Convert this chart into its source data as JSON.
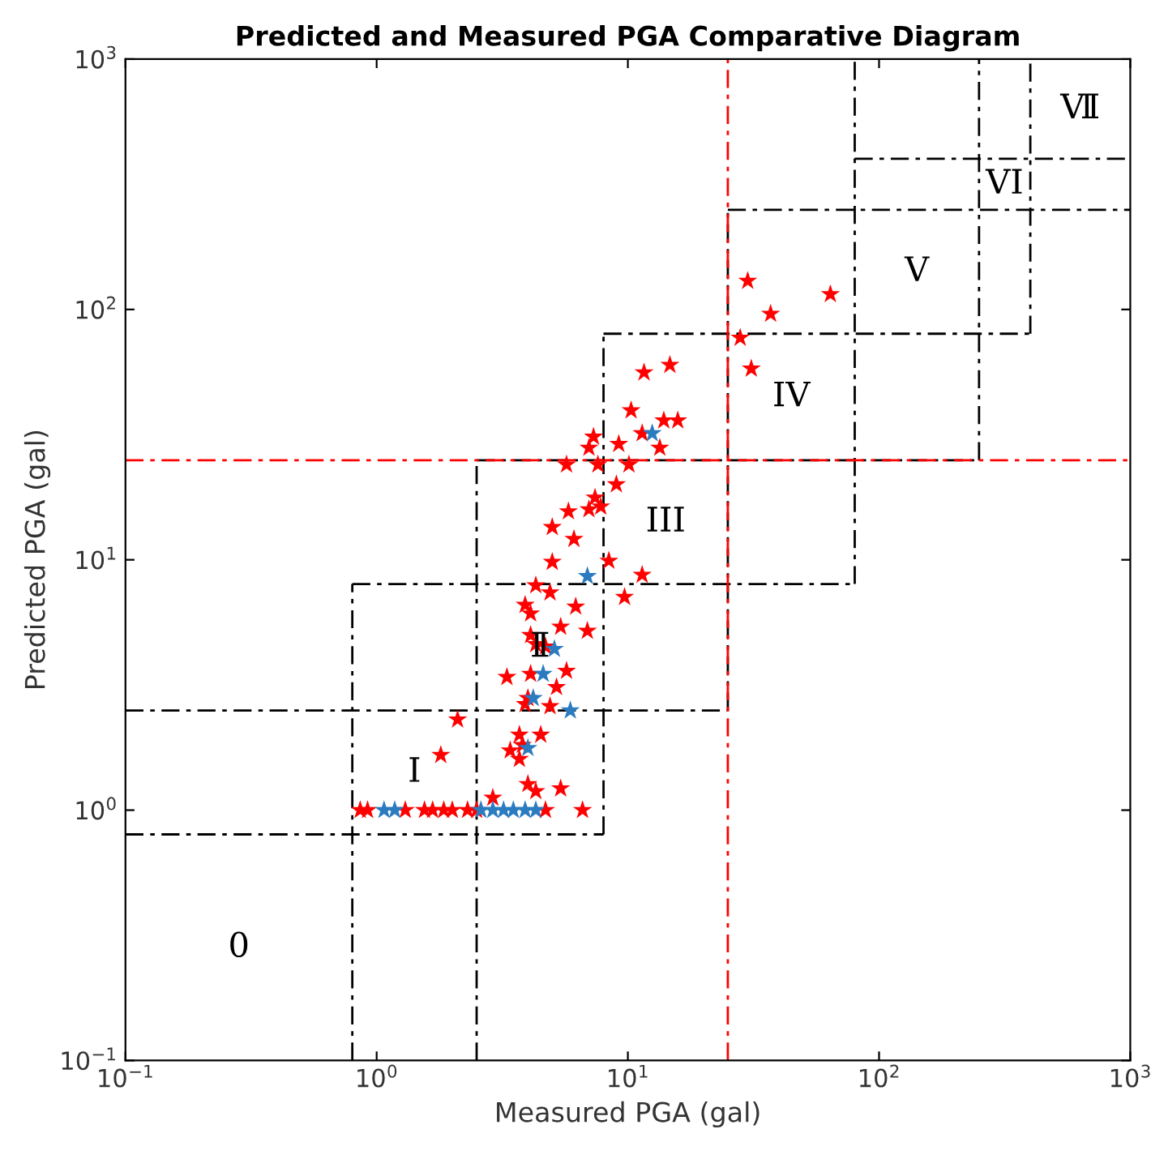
{
  "chart_data": {
    "type": "scatter",
    "title": "Predicted and Measured PGA Comparative Diagram",
    "xlabel": "Measured PGA (gal)",
    "ylabel": "Predicted PGA (gal)",
    "log": "xy",
    "xlim": [
      0.1,
      1000
    ],
    "ylim": [
      0.1,
      1000
    ],
    "xticks": [
      {
        "value": 0.1,
        "label": "10$^{−1}$"
      },
      {
        "value": 1,
        "label": "10$^{0}$"
      },
      {
        "value": 10,
        "label": "10$^{1}$"
      },
      {
        "value": 100,
        "label": "10$^{2}$"
      },
      {
        "value": 1000,
        "label": "10$^{3}$"
      }
    ],
    "yticks": [
      {
        "value": 0.1,
        "label": "10$^{−1}$"
      },
      {
        "value": 1,
        "label": "10$^{0}$"
      },
      {
        "value": 10,
        "label": "10$^{1}$"
      },
      {
        "value": 100,
        "label": "10$^{2}$"
      },
      {
        "value": 1000,
        "label": "10$^{3}$"
      }
    ],
    "marker": "star",
    "grid": false,
    "series": [
      {
        "type": "line",
        "color": "#000000",
        "line_style": "dashed",
        "marker": "none",
        "x": [
          0.1,
          8,
          null,
          0.1,
          25,
          null,
          0.8,
          80,
          null,
          2.5,
          250,
          null,
          8,
          400,
          null,
          25,
          1000,
          null,
          80,
          1000,
          null,
          0.8,
          0.8,
          null,
          2.5,
          2.5,
          null,
          8,
          8,
          null,
          25,
          25,
          null,
          80,
          80,
          null,
          250,
          250,
          null,
          400,
          400
        ],
        "values": [
          0.8,
          0.8,
          null,
          2.5,
          2.5,
          null,
          8,
          8,
          null,
          25,
          25,
          null,
          80,
          80,
          null,
          250,
          250,
          null,
          400,
          400,
          null,
          0.1,
          8,
          null,
          0.1,
          25,
          null,
          0.8,
          80,
          null,
          2.5,
          250,
          null,
          8,
          1000,
          null,
          25,
          1000,
          null,
          80,
          1000
        ]
      },
      {
        "type": "line",
        "color": "#ff0000",
        "line_style": "dashed",
        "marker": "none",
        "x": [
          25,
          25,
          null,
          0.1,
          1000
        ],
        "values": [
          0.1,
          1000,
          null,
          25,
          25
        ]
      },
      {
        "color": "#ff0000",
        "x": [
          30,
          37,
          28,
          31,
          64,
          11.6,
          14.7,
          10.3,
          13.9,
          15.8,
          11.4,
          13.4,
          7.3,
          7.0,
          9.2,
          5.7,
          7.6,
          10.1,
          9.0,
          7.4,
          7.8,
          7.0,
          5.8,
          5.0,
          6.1,
          5.0,
          8.4,
          11.4,
          4.3,
          4.9,
          3.9,
          4.1,
          6.2,
          9.7,
          5.4,
          6.9,
          4.1,
          4.3,
          4.7,
          5.7,
          3.3,
          4.1,
          5.2,
          4.0,
          3.9,
          4.9,
          2.1,
          3.7,
          4.5,
          3.4,
          3.8,
          3.7,
          1.8,
          4.0,
          4.3,
          5.4,
          2.9,
          6.6,
          0.86,
          0.92,
          1.3,
          1.55,
          1.67,
          1.85,
          2.0,
          2.3,
          2.5,
          4.7
        ],
        "values": [
          130,
          96,
          77,
          58,
          115,
          56,
          60,
          39.5,
          36,
          36,
          32,
          28,
          31,
          28,
          29,
          24,
          24,
          24,
          20,
          17.7,
          16.3,
          15.9,
          15.6,
          13.5,
          12.1,
          9.8,
          9.9,
          8.7,
          7.9,
          7.4,
          6.6,
          6.1,
          6.5,
          7.1,
          5.4,
          5.2,
          5.0,
          4.6,
          4.5,
          3.6,
          3.4,
          3.5,
          3.1,
          2.8,
          2.65,
          2.6,
          2.3,
          2.0,
          2.0,
          1.73,
          1.82,
          1.6,
          1.66,
          1.27,
          1.19,
          1.22,
          1.12,
          1.0,
          1.0,
          1.0,
          1.0,
          1.0,
          1.0,
          1.0,
          1.0,
          1.0,
          1.0,
          1.0
        ]
      },
      {
        "color": "#2b7bc0",
        "x": [
          12.5,
          6.9,
          5.1,
          4.6,
          4.2,
          5.9,
          4.0,
          1.07,
          1.18,
          2.6,
          2.9,
          3.2,
          3.5,
          3.9,
          4.3
        ],
        "values": [
          32,
          8.6,
          4.4,
          3.5,
          2.8,
          2.5,
          1.77,
          1.0,
          1.0,
          1.0,
          1.0,
          1.0,
          1.0,
          1.0,
          1.0
        ]
      }
    ],
    "annotations": [
      "0",
      "I",
      "Ⅱ",
      "III",
      "IV",
      "V",
      "VI",
      "Ⅶ"
    ]
  }
}
